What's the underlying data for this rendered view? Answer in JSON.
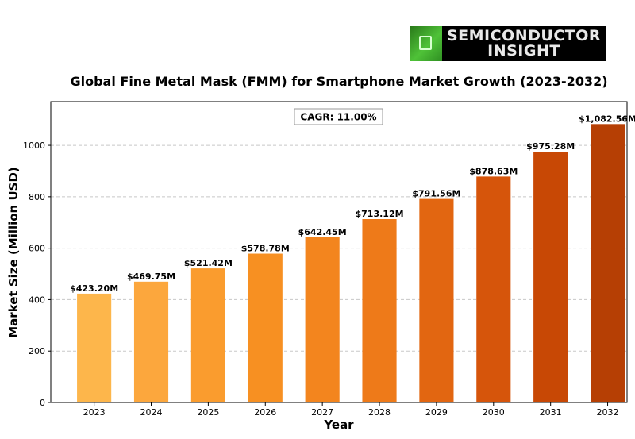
{
  "logo": {
    "line1": "SEMICONDUCTOR",
    "line2": "INSIGHT"
  },
  "chart_data": {
    "type": "bar",
    "title": "Global Fine Metal Mask (FMM) for Smartphone Market Growth (2023-2032)",
    "xlabel": "Year",
    "ylabel": "Market Size (Million USD)",
    "categories": [
      "2023",
      "2024",
      "2025",
      "2026",
      "2027",
      "2028",
      "2029",
      "2030",
      "2031",
      "2032"
    ],
    "values": [
      423.2,
      469.75,
      521.42,
      578.78,
      642.45,
      713.12,
      791.56,
      878.63,
      975.28,
      1082.56
    ],
    "data_labels": [
      "$423.20M",
      "$469.75M",
      "$521.42M",
      "$578.78M",
      "$642.45M",
      "$713.12M",
      "$791.56M",
      "$878.63M",
      "$975.28M",
      "$1,082.56M"
    ],
    "colors": [
      "#FDB64B",
      "#FCA73D",
      "#FA9C2E",
      "#F79022",
      "#F3851E",
      "#EE7A19",
      "#E26611",
      "#D6550B",
      "#C84805",
      "#B63F04"
    ],
    "ylim": [
      0,
      1170
    ],
    "yticks": [
      0,
      200,
      400,
      600,
      800,
      1000
    ],
    "grid": "horizontal dashed",
    "annotation": "CAGR: 11.00%"
  }
}
